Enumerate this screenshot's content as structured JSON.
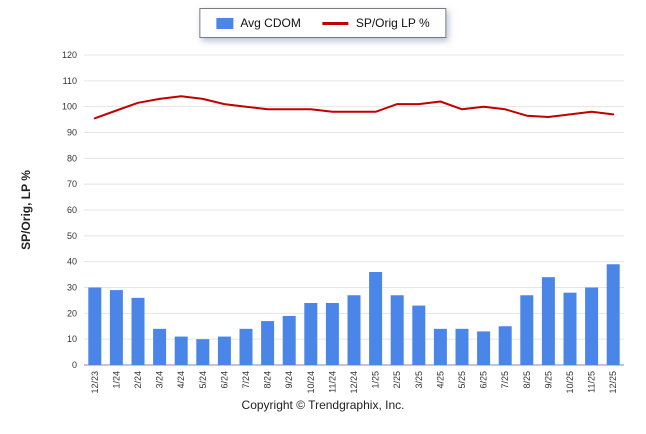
{
  "footer": {
    "text": "Copyright © Trendgraphix, Inc."
  },
  "chart_data": {
    "type": "bar+line",
    "title": "",
    "ylabel": "SP/Orig, LP %",
    "xlabel": "",
    "ylim": [
      0,
      120
    ],
    "ytick_step": 10,
    "grid": true,
    "legend_position": "top",
    "categories": [
      "12/23",
      "1/24",
      "2/24",
      "3/24",
      "4/24",
      "5/24",
      "6/24",
      "7/24",
      "8/24",
      "9/24",
      "10/24",
      "11/24",
      "12/24",
      "1/25",
      "2/25",
      "3/25",
      "4/25",
      "5/25",
      "6/25",
      "7/25",
      "8/25",
      "9/25",
      "10/25",
      "11/25",
      "12/25"
    ],
    "series": [
      {
        "name": "Avg CDOM",
        "type": "bar",
        "color": "#4a86e8",
        "values": [
          30,
          29,
          26,
          14,
          11,
          10,
          11,
          14,
          17,
          19,
          24,
          24,
          27,
          36,
          27,
          23,
          14,
          14,
          13,
          15,
          27,
          34,
          28,
          30,
          39
        ]
      },
      {
        "name": "SP/Orig LP %",
        "type": "line",
        "color": "#c00000",
        "values": [
          95.5,
          98.5,
          101.5,
          103,
          104,
          103,
          101,
          100,
          99,
          99,
          99,
          98,
          98,
          98,
          101,
          101,
          102,
          99,
          100,
          99,
          96.5,
          96,
          97,
          98,
          97
        ]
      }
    ]
  }
}
